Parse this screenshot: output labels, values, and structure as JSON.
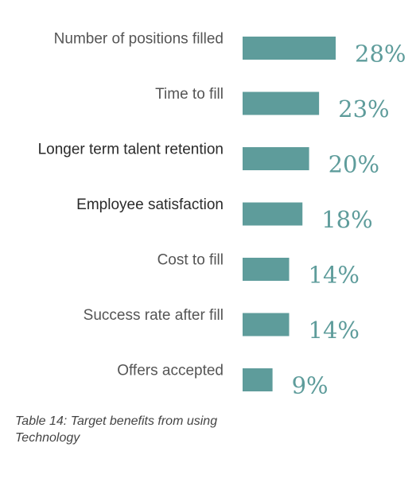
{
  "chart_data": {
    "type": "bar",
    "orientation": "horizontal",
    "categories": [
      "Number of positions filled",
      "Time to fill",
      "Longer term talent retention",
      "Employee satisfaction",
      "Cost to fill",
      "Success rate after fill",
      "Offers accepted"
    ],
    "values": [
      28,
      23,
      20,
      18,
      14,
      14,
      9
    ],
    "value_labels": [
      "28%",
      "23%",
      "20%",
      "18%",
      "14%",
      "14%",
      "9%"
    ],
    "unit": "%",
    "xlim": [
      0,
      30
    ],
    "grid": false,
    "legend": "none",
    "bar_color": "#5e9c9b"
  },
  "caption": "Table 14: Target benefits from using Technology"
}
